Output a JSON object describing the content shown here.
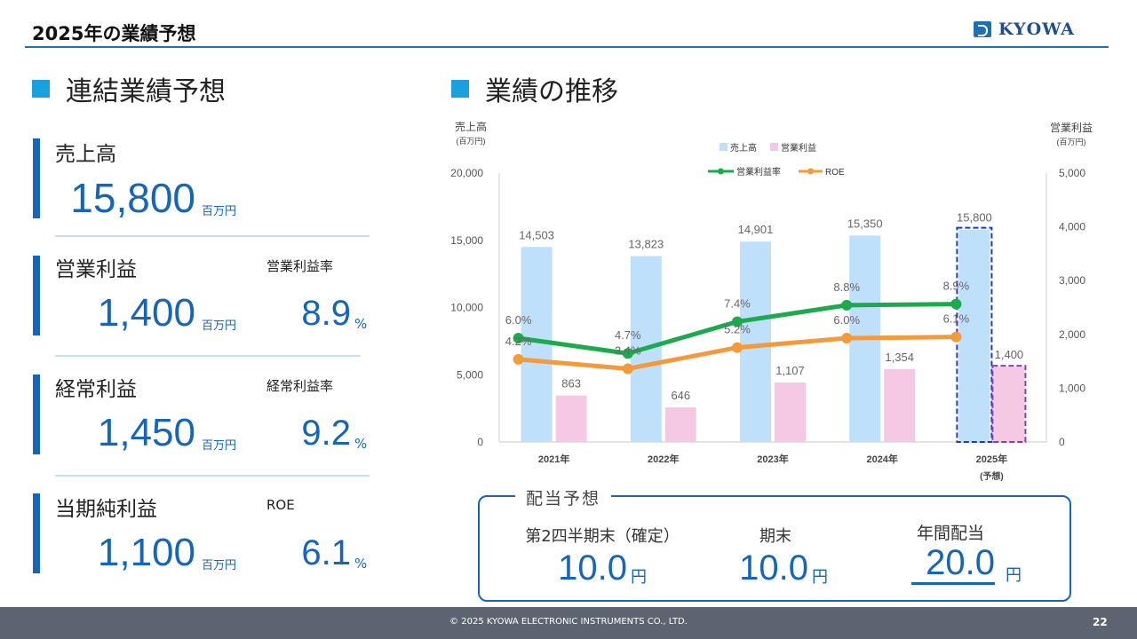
{
  "header": {
    "title": "2025年の業績予想",
    "logo_text": "KYOWA"
  },
  "left": {
    "section_title": "連結業績予想",
    "kpis": [
      {
        "label": "売上高",
        "value": "15,800",
        "unit": "百万円",
        "ratio_label": "",
        "ratio": "",
        "ratio_unit": ""
      },
      {
        "label": "営業利益",
        "value": "1,400",
        "unit": "百万円",
        "ratio_label": "営業利益率",
        "ratio": "8.9",
        "ratio_unit": "%"
      },
      {
        "label": "経常利益",
        "value": "1,450",
        "unit": "百万円",
        "ratio_label": "経常利益率",
        "ratio": "9.2",
        "ratio_unit": "%"
      },
      {
        "label": "当期純利益",
        "value": "1,100",
        "unit": "百万円",
        "ratio_label": "ROE",
        "ratio": "6.1",
        "ratio_unit": "%"
      }
    ]
  },
  "right": {
    "section_title": "業績の推移"
  },
  "chart_data": {
    "type": "bar",
    "categories": [
      "2021年",
      "2022年",
      "2023年",
      "2024年",
      "2025年"
    ],
    "category_sublabels": [
      "",
      "",
      "",
      "",
      "(予想)"
    ],
    "left_axis_title": "売上高",
    "left_axis_unit": "(百万円)",
    "right_axis_title": "営業利益",
    "right_axis_unit": "(百万円)",
    "left_ylim": [
      0,
      20000
    ],
    "left_ticks": [
      "0",
      "5,000",
      "10,000",
      "15,000",
      "20,000"
    ],
    "right_ylim": [
      0,
      5000
    ],
    "right_ticks": [
      "0",
      "1,000",
      "2,000",
      "3,000",
      "4,000",
      "5,000"
    ],
    "series": [
      {
        "name": "売上高",
        "axis": "left",
        "kind": "bar",
        "color": "#bfe0fa",
        "values": [
          14503,
          13823,
          14901,
          15350,
          15800
        ],
        "labels": [
          "14,503",
          "13,823",
          "14,901",
          "15,350",
          "15,800"
        ]
      },
      {
        "name": "営業利益",
        "axis": "right",
        "kind": "bar",
        "color": "#f5c9e3",
        "values": [
          863,
          646,
          1107,
          1354,
          1400
        ],
        "labels": [
          "863",
          "646",
          "1,107",
          "1,354",
          "1,400"
        ]
      },
      {
        "name": "営業利益率",
        "kind": "line",
        "color": "#1daa4f",
        "values": [
          6.0,
          4.7,
          7.4,
          8.8,
          8.9
        ],
        "labels": [
          "6.0%",
          "4.7%",
          "7.4%",
          "8.8%",
          "8.9%"
        ]
      },
      {
        "name": "ROE",
        "kind": "line",
        "color": "#f39a3c",
        "values": [
          4.2,
          3.4,
          5.2,
          6.0,
          6.1
        ],
        "labels": [
          "4.2%",
          "3.4%",
          "5.2%",
          "6.0%",
          "6.1%"
        ]
      }
    ],
    "legend_placement": "top",
    "grid": false,
    "forecast_highlight_colors": {
      "sales": "#1a3cc8",
      "profit": "#8a3cb4"
    }
  },
  "dividend": {
    "title": "配当予想",
    "items": [
      {
        "label": "第2四半期末（確定）",
        "value": "10.0",
        "unit": "円"
      },
      {
        "label": "期末",
        "value": "10.0",
        "unit": "円"
      },
      {
        "label": "年間配当",
        "value": "20.0",
        "unit": "円"
      }
    ]
  },
  "footer": {
    "copyright": "© 2025 KYOWA ELECTRONIC INSTRUMENTS CO., LTD.",
    "page": "22"
  }
}
